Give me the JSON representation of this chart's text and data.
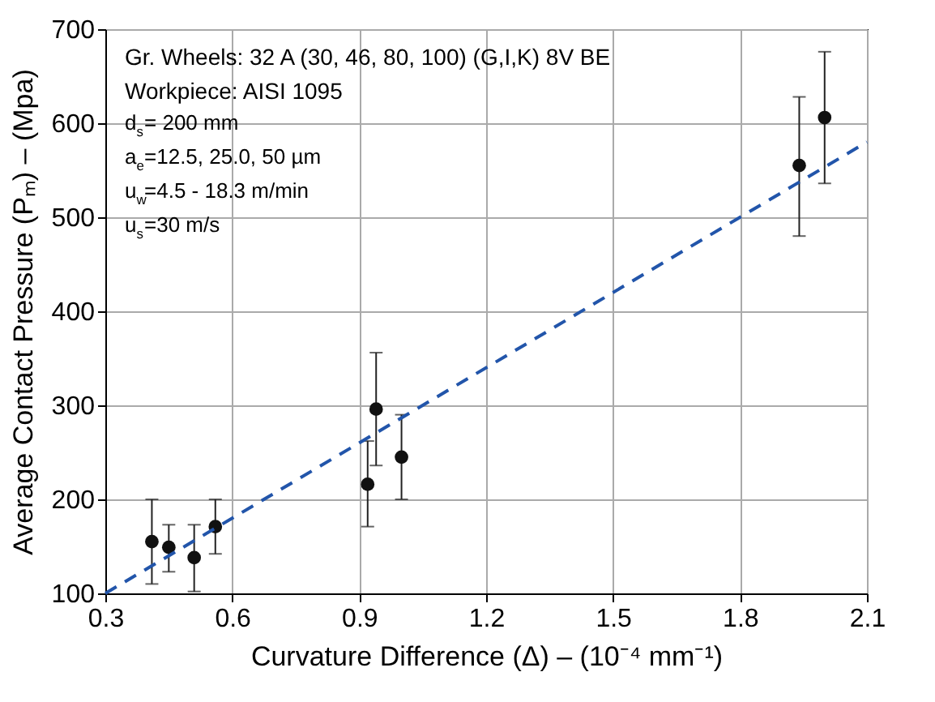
{
  "chart_data": {
    "type": "scatter",
    "xlabel": "Curvature Difference (Δ) – (10⁻⁴ mm⁻¹)",
    "ylabel": "Average Contact Pressure (Pₘ) – (Mpa)",
    "annotations": [
      "Gr. Wheels: 32 A (30, 46, 80, 100) (G,I,K) 8V BE",
      "Workpiece: AISI 1095",
      "d$_{s}$= 200 mm",
      "a$_{e}$=12.5, 25.0, 50 µm",
      "u$_{w}$=4.5 - 18.3 m/min",
      "u$_{s}$=30 m/s"
    ],
    "series": [
      {
        "color": "#111111",
        "marker": "circle",
        "x": [
          0.41,
          0.45,
          0.51,
          0.56,
          0.92,
          0.94,
          1.0,
          1.94,
          2.0
        ],
        "values": [
          155,
          149,
          138,
          171,
          216,
          296,
          245,
          555,
          606
        ],
        "errors": [
          [
            110,
            200
          ],
          [
            123,
            173
          ],
          [
            102,
            173
          ],
          [
            142,
            200
          ],
          [
            171,
            262
          ],
          [
            236,
            356
          ],
          [
            200,
            290
          ],
          [
            480,
            628
          ],
          [
            536,
            676
          ]
        ]
      },
      {
        "type": "line",
        "color": "#2255aa",
        "line_style": "dashed",
        "x": [
          0.3,
          2.1
        ],
        "values": [
          100,
          580
        ]
      }
    ],
    "xlim": [
      0.3,
      2.1
    ],
    "xticks": [
      0.3,
      0.6,
      0.9,
      1.2,
      1.5,
      1.8,
      2.1
    ],
    "ylim": [
      100,
      700
    ],
    "yticks": [
      100,
      200,
      300,
      400,
      500,
      600,
      700
    ],
    "grid": true
  }
}
